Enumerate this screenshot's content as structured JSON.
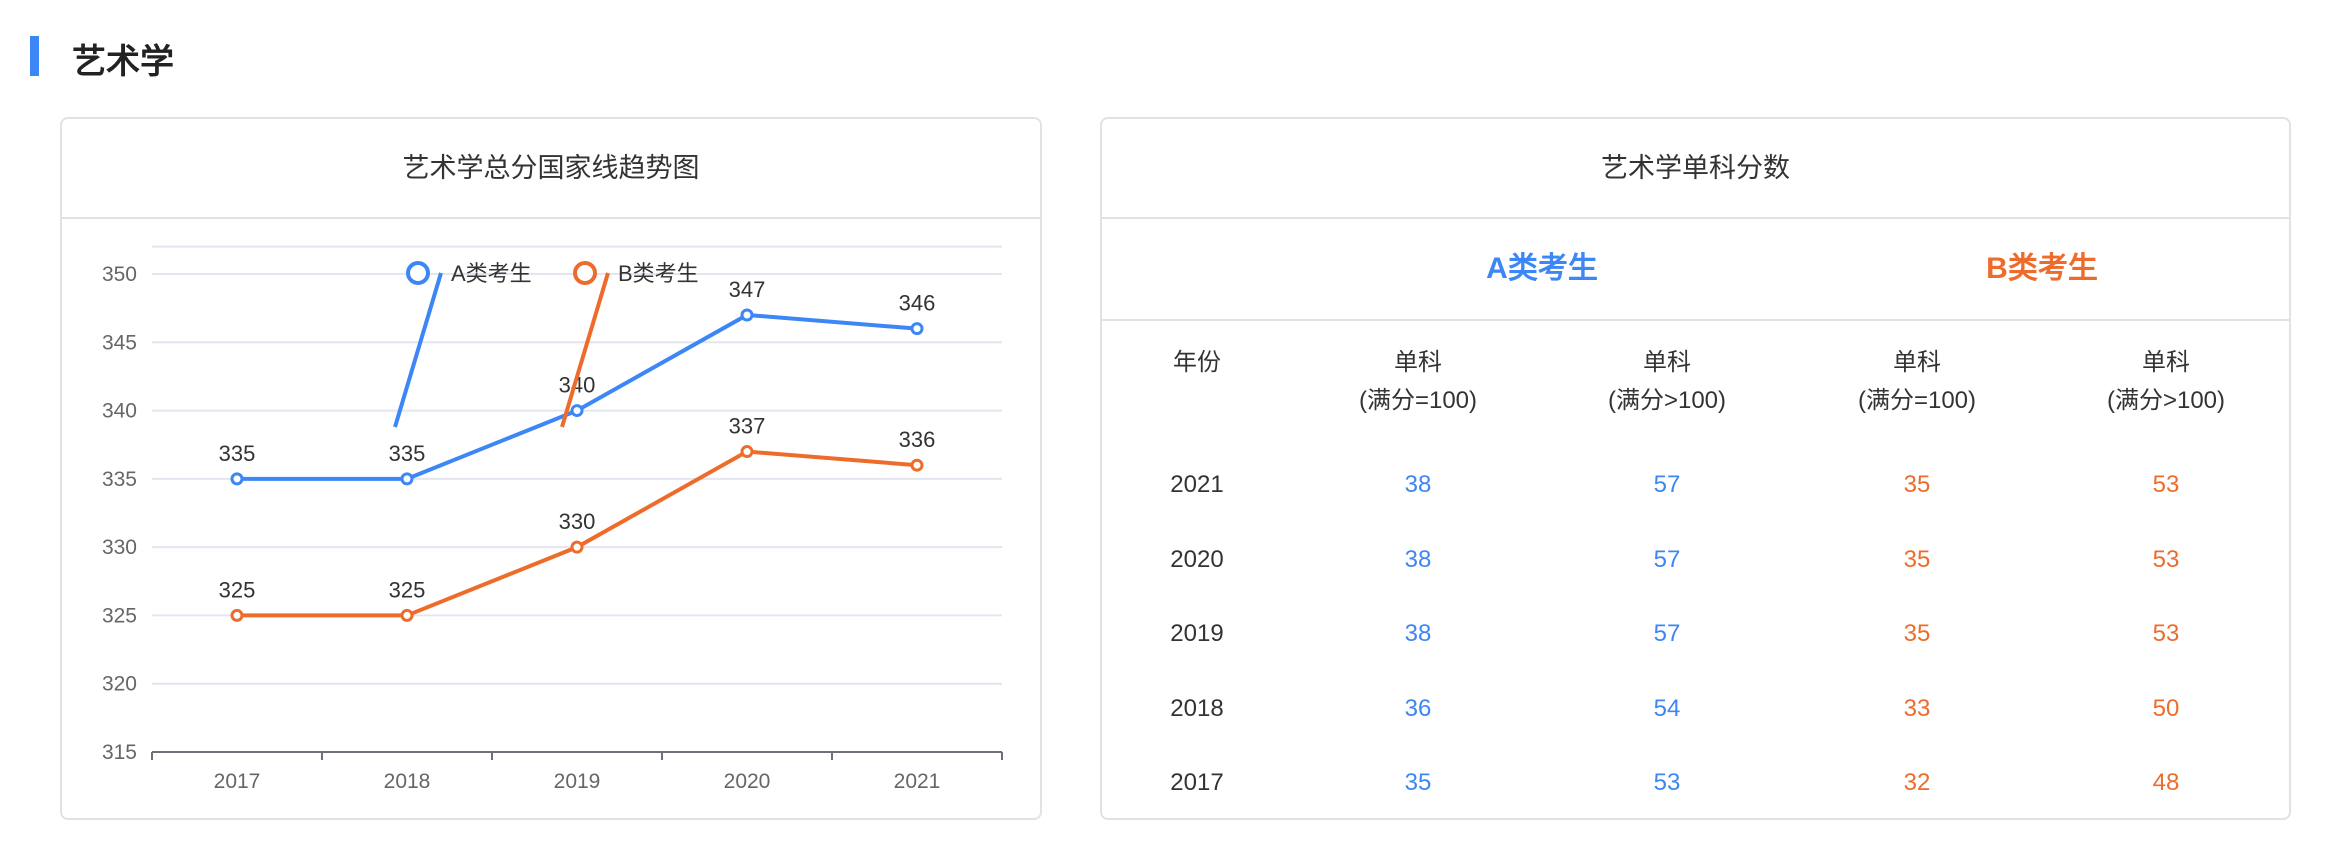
{
  "section_title": "艺术学",
  "colors": {
    "a": "#3d86f5",
    "b": "#ee6c2b"
  },
  "chart_data": {
    "type": "line",
    "title": "艺术学总分国家线趋势图",
    "categories": [
      "2017",
      "2018",
      "2019",
      "2020",
      "2021"
    ],
    "series": [
      {
        "name": "A类考生",
        "values": [
          335,
          335,
          340,
          347,
          346
        ]
      },
      {
        "name": "B类考生",
        "values": [
          325,
          325,
          330,
          337,
          336
        ]
      }
    ],
    "yticks": [
      315,
      320,
      325,
      330,
      335,
      340,
      345,
      350
    ],
    "ylim": [
      315,
      352
    ],
    "legend": "top-center",
    "grid": true
  },
  "table": {
    "title": "艺术学单科分数",
    "group_a": "A类考生",
    "group_b": "B类考生",
    "headers": [
      [
        "年份",
        ""
      ],
      [
        "单科",
        "(满分=100)"
      ],
      [
        "单科",
        "(满分>100)"
      ],
      [
        "单科",
        "(满分=100)"
      ],
      [
        "单科",
        "(满分>100)"
      ]
    ],
    "rows": [
      [
        "2021",
        "38",
        "57",
        "35",
        "53"
      ],
      [
        "2020",
        "38",
        "57",
        "35",
        "53"
      ],
      [
        "2019",
        "38",
        "57",
        "35",
        "53"
      ],
      [
        "2018",
        "36",
        "54",
        "33",
        "50"
      ],
      [
        "2017",
        "35",
        "53",
        "32",
        "48"
      ]
    ]
  }
}
